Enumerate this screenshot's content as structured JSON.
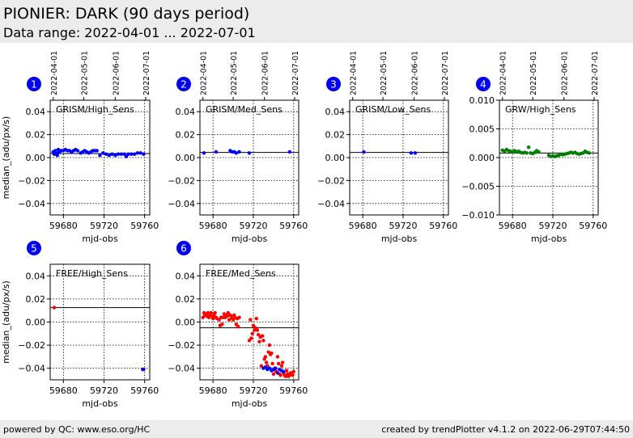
{
  "header": {
    "title": "PIONIER: DARK (90 days period)",
    "subtitle": "Data range: 2022-04-01 ... 2022-07-01"
  },
  "footer": {
    "left": "powered by QC: www.eso.org/HC",
    "right": "created by trendPlotter v4.1.2 on 2022-06-29T07:44:50"
  },
  "colors": {
    "header_bg": "#ececec",
    "badge": "#0000ee",
    "blue_series": "#0000ff",
    "green_series": "#008000",
    "red_series": "#ff0000"
  },
  "chart_data": [
    {
      "type": "scatter",
      "badge": "1",
      "label": "GRISM/High_Sens",
      "xlabel": "mjd-obs",
      "ylabel": "median_(adu/px/s)",
      "xlim": [
        59667,
        59765
      ],
      "ylim": [
        -0.05,
        0.05
      ],
      "xticks": [
        59680,
        59720,
        59760
      ],
      "yticks": [
        -0.04,
        -0.02,
        0.0,
        0.02,
        0.04
      ],
      "ytick_labels": [
        "−0.04",
        "−0.02",
        "0.00",
        "0.02",
        "0.04"
      ],
      "top_dates": [
        "2022-04-01",
        "2022-05-01",
        "2022-06-01",
        "2022-07-01"
      ],
      "top_dates_mjd": [
        59670,
        59700,
        59731,
        59761
      ],
      "ref_line": 0.0035,
      "series": [
        {
          "color": "#0000ff",
          "x": [
            59670,
            59671,
            59672,
            59673,
            59674,
            59675,
            59676,
            59678,
            59680,
            59682,
            59684,
            59686,
            59688,
            59690,
            59692,
            59694,
            59697,
            59699,
            59701,
            59703,
            59705,
            59707,
            59709,
            59711,
            59713,
            59716,
            59719,
            59722,
            59725,
            59728,
            59731,
            59734,
            59737,
            59740,
            59742,
            59744,
            59747,
            59750,
            59753,
            59756,
            59759
          ],
          "y": [
            0.005,
            0.003,
            0.006,
            0.004,
            0.002,
            0.007,
            0.005,
            0.006,
            0.006,
            0.007,
            0.006,
            0.006,
            0.005,
            0.006,
            0.007,
            0.006,
            0.004,
            0.005,
            0.006,
            0.005,
            0.004,
            0.005,
            0.006,
            0.006,
            0.006,
            0.002,
            0.004,
            0.003,
            0.002,
            0.003,
            0.002,
            0.003,
            0.003,
            0.003,
            0.001,
            0.003,
            0.003,
            0.003,
            0.004,
            0.004,
            0.003
          ]
        }
      ]
    },
    {
      "type": "scatter",
      "badge": "2",
      "label": "GRISM/Med_Sens",
      "xlabel": "mjd-obs",
      "ylabel": "",
      "xlim": [
        59667,
        59765
      ],
      "ylim": [
        -0.05,
        0.05
      ],
      "xticks": [
        59680,
        59720,
        59760
      ],
      "yticks": [
        -0.04,
        -0.02,
        0.0,
        0.02,
        0.04
      ],
      "ytick_labels": [
        "−0.04",
        "−0.02",
        "0.00",
        "0.02",
        "0.04"
      ],
      "top_dates": [
        "2022-04-01",
        "2022-05-01",
        "2022-06-01",
        "2022-07-01"
      ],
      "top_dates_mjd": [
        59670,
        59700,
        59731,
        59761
      ],
      "ref_line": 0.0045,
      "series": [
        {
          "color": "#0000ff",
          "x": [
            59671,
            59683,
            59697,
            59699,
            59701,
            59703,
            59706,
            59716,
            59756
          ],
          "y": [
            0.004,
            0.005,
            0.006,
            0.005,
            0.005,
            0.004,
            0.005,
            0.004,
            0.005
          ]
        }
      ]
    },
    {
      "type": "scatter",
      "badge": "3",
      "label": "GRISM/Low_Sens",
      "xlabel": "mjd-obs",
      "ylabel": "",
      "xlim": [
        59667,
        59765
      ],
      "ylim": [
        -0.05,
        0.05
      ],
      "xticks": [
        59680,
        59720,
        59760
      ],
      "yticks": [
        -0.04,
        -0.02,
        0.0,
        0.02,
        0.04
      ],
      "ytick_labels": [
        "−0.04",
        "−0.02",
        "0.00",
        "0.02",
        "0.04"
      ],
      "top_dates": [
        "2022-04-01",
        "2022-05-01",
        "2022-06-01",
        "2022-07-01"
      ],
      "top_dates_mjd": [
        59670,
        59700,
        59731,
        59761
      ],
      "ref_line": 0.0045,
      "series": [
        {
          "color": "#0000ff",
          "x": [
            59681,
            59728,
            59732
          ],
          "y": [
            0.005,
            0.004,
            0.004
          ]
        }
      ]
    },
    {
      "type": "scatter",
      "badge": "4",
      "label": "GRW/High_Sens",
      "xlabel": "mjd-obs",
      "ylabel": "",
      "xlim": [
        59667,
        59765
      ],
      "ylim": [
        -0.01,
        0.01
      ],
      "xticks": [
        59680,
        59720,
        59760
      ],
      "yticks": [
        -0.01,
        -0.005,
        0.0,
        0.005,
        0.01
      ],
      "ytick_labels": [
        "−0.010",
        "−0.005",
        "0.000",
        "0.005",
        "0.010"
      ],
      "top_dates": [
        "2022-04-01",
        "2022-05-01",
        "2022-06-01",
        "2022-07-01"
      ],
      "top_dates_mjd": [
        59670,
        59700,
        59731,
        59761
      ],
      "ref_line": 0.0008,
      "series": [
        {
          "color": "#008000",
          "x": [
            59670,
            59672,
            59674,
            59676,
            59678,
            59680,
            59682,
            59684,
            59686,
            59688,
            59690,
            59692,
            59694,
            59696,
            59698,
            59700,
            59702,
            59704,
            59706,
            59716,
            59718,
            59720,
            59722,
            59724,
            59726,
            59728,
            59730,
            59732,
            59734,
            59736,
            59738,
            59740,
            59742,
            59744,
            59746,
            59748,
            59750,
            59752,
            59754,
            59756
          ],
          "y": [
            0.0013,
            0.0011,
            0.0014,
            0.0012,
            0.0011,
            0.001,
            0.0012,
            0.001,
            0.0011,
            0.0009,
            0.0008,
            0.0009,
            0.0008,
            0.0018,
            0.0008,
            0.0007,
            0.0009,
            0.0012,
            0.001,
            0.0004,
            0.0002,
            0.0003,
            0.0002,
            0.0003,
            0.0004,
            0.0006,
            0.0005,
            0.0006,
            0.0007,
            0.0008,
            0.0009,
            0.0008,
            0.0009,
            0.0007,
            0.0006,
            0.0007,
            0.0008,
            0.0011,
            0.0009,
            0.0008
          ]
        }
      ]
    },
    {
      "type": "scatter",
      "badge": "5",
      "label": "FREE/High_Sens",
      "xlabel": "mjd-obs",
      "ylabel": "median_(adu/px/s)",
      "xlim": [
        59667,
        59765
      ],
      "ylim": [
        -0.05,
        0.05
      ],
      "xticks": [
        59680,
        59720,
        59760
      ],
      "yticks": [
        -0.04,
        -0.02,
        0.0,
        0.02,
        0.04
      ],
      "ytick_labels": [
        "−0.04",
        "−0.02",
        "0.00",
        "0.02",
        "0.04"
      ],
      "top_dates": [],
      "top_dates_mjd": [],
      "ref_line": 0.0125,
      "series": [
        {
          "color": "#ff0000",
          "x": [
            59671
          ],
          "y": [
            0.0125
          ]
        },
        {
          "color": "#0000ff",
          "x": [
            59758,
            59759
          ],
          "y": [
            -0.041,
            -0.041
          ]
        }
      ]
    },
    {
      "type": "scatter",
      "badge": "6",
      "label": "FREE/Med_Sens",
      "xlabel": "mjd-obs",
      "ylabel": "",
      "xlim": [
        59667,
        59765
      ],
      "ylim": [
        -0.05,
        0.05
      ],
      "xticks": [
        59680,
        59720,
        59760
      ],
      "yticks": [
        -0.04,
        -0.02,
        0.0,
        0.02,
        0.04
      ],
      "ytick_labels": [
        "−0.04",
        "−0.02",
        "0.00",
        "0.02",
        "0.04"
      ],
      "top_dates": [],
      "top_dates_mjd": [],
      "ref_line": -0.005,
      "series": [
        {
          "color": "#ff0000",
          "x": [
            59670,
            59671,
            59672,
            59673,
            59674,
            59675,
            59676,
            59677,
            59678,
            59679,
            59680,
            59681,
            59682,
            59683,
            59684,
            59686,
            59687,
            59688,
            59689,
            59690,
            59691,
            59692,
            59693,
            59694,
            59695,
            59696,
            59697,
            59698,
            59699,
            59700,
            59701,
            59702,
            59703,
            59704,
            59705,
            59706,
            59716,
            59717,
            59718,
            59719,
            59720,
            59721,
            59722,
            59723,
            59724,
            59725,
            59726,
            59727,
            59728,
            59729,
            59730,
            59731,
            59732,
            59733,
            59734,
            59735,
            59736,
            59737,
            59738,
            59739,
            59740,
            59741,
            59742,
            59743,
            59744,
            59745,
            59746,
            59747,
            59748,
            59749,
            59750,
            59751,
            59752,
            59753,
            59754,
            59755,
            59756,
            59757,
            59758,
            59759,
            59760
          ],
          "y": [
            0.004,
            0.008,
            0.006,
            0.007,
            0.005,
            0.008,
            0.004,
            0.006,
            0.008,
            0.005,
            0.003,
            0.006,
            0.008,
            0.004,
            0.003,
            0.002,
            -0.003,
            0.004,
            -0.002,
            0.004,
            0.007,
            0.004,
            0.006,
            0.005,
            0.008,
            0.002,
            0.006,
            0.005,
            0.003,
            0.002,
            0.006,
            0.004,
            -0.002,
            0.003,
            -0.004,
            0.004,
            -0.016,
            0.002,
            -0.014,
            -0.01,
            -0.003,
            -0.007,
            -0.005,
            0.003,
            -0.007,
            -0.011,
            -0.017,
            -0.013,
            -0.038,
            -0.012,
            -0.016,
            -0.032,
            -0.03,
            -0.035,
            -0.038,
            -0.026,
            -0.02,
            -0.028,
            -0.027,
            -0.036,
            -0.045,
            -0.04,
            -0.042,
            -0.043,
            -0.03,
            -0.036,
            -0.045,
            -0.046,
            -0.038,
            -0.035,
            -0.044,
            -0.046,
            -0.047,
            -0.042,
            -0.045,
            -0.047,
            -0.046,
            -0.044,
            -0.045,
            -0.046,
            -0.043
          ]
        },
        {
          "color": "#0000ff",
          "x": [
            59730,
            59732,
            59734,
            59736,
            59738,
            59740,
            59742,
            59744,
            59746,
            59748,
            59750
          ],
          "y": [
            -0.04,
            -0.039,
            -0.041,
            -0.04,
            -0.042,
            -0.041,
            -0.04,
            -0.044,
            -0.041,
            -0.042,
            -0.043
          ]
        }
      ]
    }
  ]
}
